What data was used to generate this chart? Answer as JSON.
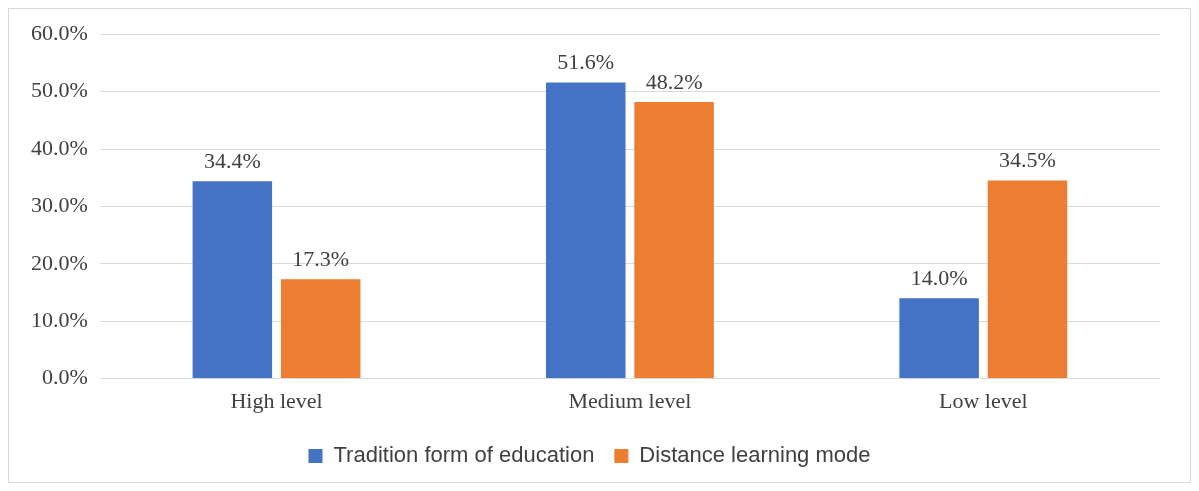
{
  "chart_data": {
    "type": "bar",
    "categories": [
      "High level",
      "Medium level",
      "Low level"
    ],
    "series": [
      {
        "name": "Tradition form of education",
        "color": "#4472c4",
        "values": [
          34.4,
          51.6,
          14.0
        ],
        "value_labels": [
          "34.4%",
          "51.6%",
          "14.0%"
        ]
      },
      {
        "name": "Distance learning mode",
        "color": "#ed7d31",
        "values": [
          17.3,
          48.2,
          34.5
        ],
        "value_labels": [
          "17.3%",
          "48.2%",
          "34.5%"
        ]
      }
    ],
    "ylim": [
      0,
      60
    ],
    "yticks": [
      {
        "value": 0,
        "label": "0.0%"
      },
      {
        "value": 10,
        "label": "10.0%"
      },
      {
        "value": 20,
        "label": "20.0%"
      },
      {
        "value": 30,
        "label": "30.0%"
      },
      {
        "value": 40,
        "label": "40.0%"
      },
      {
        "value": 50,
        "label": "50.0%"
      },
      {
        "value": 60,
        "label": "60.0%"
      }
    ],
    "grid": "y",
    "legend": "bottom"
  }
}
